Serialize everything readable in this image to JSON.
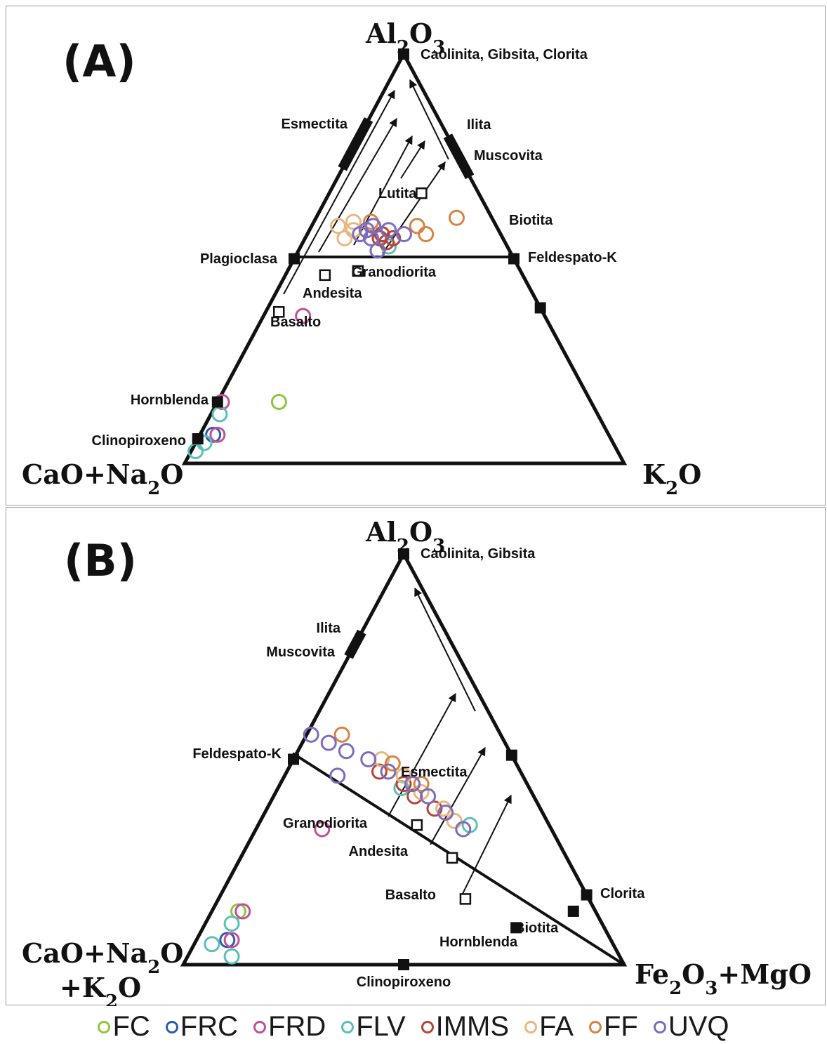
{
  "chart_data": [
    {
      "type": "scatter",
      "panel": "(A)",
      "diagram": "ternary",
      "vertices": {
        "top": {
          "main": "Al",
          "sub1": "2",
          "mid": "O",
          "sub2": "3"
        },
        "left": {
          "main": "CaO+Na",
          "sub1": "2",
          "mid": "O"
        },
        "right": {
          "main": "K",
          "sub1": "2",
          "mid": "O"
        }
      },
      "minerals": [
        {
          "label": "Caolinita, Gibsita, Clorita",
          "a": 100,
          "c": 0,
          "k": 0
        },
        {
          "label": "Biotita",
          "a": 38,
          "c": 0,
          "k": 62
        },
        {
          "label": "Feldespato-K",
          "a": 50,
          "c": 0,
          "k": 50
        },
        {
          "label": "Plagioclasa",
          "a": 50,
          "c": 50,
          "k": 0
        },
        {
          "label": "Hornblenda",
          "a": 15,
          "c": 85,
          "k": 0
        },
        {
          "label": "Clinopiroxeno",
          "a": 6,
          "c": 94,
          "k": 0
        }
      ],
      "field_bars": [
        {
          "label": "Esmectita",
          "a_from": 72,
          "a_to": 84
        },
        {
          "label": "Ilita",
          "a_from": 70,
          "a_to": 80
        },
        {
          "label": "Muscovita",
          "a_from": 70,
          "a_to": 80
        }
      ],
      "rocks": [
        {
          "label": "Lutita",
          "a": 66,
          "c": 13,
          "k": 21
        },
        {
          "label": "Granodiorita",
          "a": 47,
          "c": 37,
          "k": 16
        },
        {
          "label": "Andesita",
          "a": 46,
          "c": 45,
          "k": 9
        },
        {
          "label": "Basalto",
          "a": 37,
          "c": 60,
          "k": 3
        }
      ],
      "series": [
        {
          "name": "FC",
          "points": [
            {
              "a": 15,
              "c": 71,
              "k": 14
            }
          ]
        },
        {
          "name": "FRC",
          "points": [
            {
              "a": 7,
              "c": 90,
              "k": 3
            }
          ]
        },
        {
          "name": "FRD",
          "points": [
            {
              "a": 15,
              "c": 84,
              "k": 1
            },
            {
              "a": 36,
              "c": 55,
              "k": 9
            },
            {
              "a": 7,
              "c": 89,
              "k": 4
            }
          ]
        },
        {
          "name": "FLV",
          "points": [
            {
              "a": 12,
              "c": 86,
              "k": 2
            },
            {
              "a": 5,
              "c": 93,
              "k": 2
            },
            {
              "a": 3,
              "c": 96,
              "k": 1
            },
            {
              "a": 53,
              "c": 27,
              "k": 20
            }
          ]
        },
        {
          "name": "IMMS",
          "points": [
            {
              "a": 55,
              "c": 28,
              "k": 17
            },
            {
              "a": 56,
              "c": 27,
              "k": 17
            },
            {
              "a": 54,
              "c": 27,
              "k": 19
            },
            {
              "a": 55,
              "c": 25,
              "k": 20
            }
          ]
        },
        {
          "name": "FA",
          "points": [
            {
              "a": 58,
              "c": 36,
              "k": 6
            },
            {
              "a": 59,
              "c": 32,
              "k": 9
            },
            {
              "a": 57,
              "c": 33,
              "k": 10
            },
            {
              "a": 55,
              "c": 36,
              "k": 9
            }
          ]
        },
        {
          "name": "FF",
          "points": [
            {
              "a": 58,
              "c": 18,
              "k": 24
            },
            {
              "a": 56,
              "c": 17,
              "k": 27
            },
            {
              "a": 59,
              "c": 28,
              "k": 13
            },
            {
              "a": 60,
              "c": 8,
              "k": 32
            }
          ]
        },
        {
          "name": "UVQ",
          "points": [
            {
              "a": 56,
              "c": 32,
              "k": 12
            },
            {
              "a": 57,
              "c": 30,
              "k": 13
            },
            {
              "a": 55,
              "c": 30,
              "k": 15
            },
            {
              "a": 58,
              "c": 28,
              "k": 14
            },
            {
              "a": 57,
              "c": 25,
              "k": 18
            },
            {
              "a": 56,
              "c": 22,
              "k": 22
            },
            {
              "a": 52,
              "c": 30,
              "k": 18
            }
          ]
        }
      ]
    },
    {
      "type": "scatter",
      "panel": "(B)",
      "diagram": "ternary",
      "vertices": {
        "top": {
          "main": "Al",
          "sub1": "2",
          "mid": "O",
          "sub2": "3"
        },
        "left": {
          "main": "CaO+Na",
          "sub1": "2",
          "mid": "O",
          "line2": "+K",
          "sub3": "2",
          "end": "O"
        },
        "right": {
          "main": "Fe",
          "sub1": "2",
          "mid": "O",
          "sub2": "3",
          "end": "+MgO"
        }
      },
      "minerals": [
        {
          "label": "Caolinita, Gibsita",
          "a": 100,
          "c": 0,
          "f": 0
        },
        {
          "label": "Feldespato-K",
          "a": 50,
          "c": 50,
          "f": 0
        },
        {
          "label": "Esmectita",
          "a": 51,
          "c": 0,
          "f": 49
        },
        {
          "label": "Clorita",
          "a": 17,
          "c": 0,
          "f": 83
        },
        {
          "label": "Biotita",
          "a": 13,
          "c": 5,
          "f": 82
        },
        {
          "label": "Hornblenda",
          "a": 9,
          "c": 20,
          "f": 71
        },
        {
          "label": "Clinopiroxeno",
          "a": 0,
          "c": 50,
          "f": 50
        }
      ],
      "field_bars": [
        {
          "label": "Ilita",
          "a_from": 75,
          "a_to": 81
        },
        {
          "label": "Muscovita",
          "a_from": 75,
          "a_to": 81
        }
      ],
      "rocks": [
        {
          "label": "Granodiorita",
          "a": 34,
          "c": 30,
          "f": 36
        },
        {
          "label": "Andesita",
          "a": 26,
          "c": 26,
          "f": 48
        },
        {
          "label": "Basalto",
          "a": 16,
          "c": 28,
          "f": 56
        }
      ],
      "series": [
        {
          "name": "FC",
          "points": [
            {
              "a": 13,
              "c": 81,
              "f": 6
            }
          ]
        },
        {
          "name": "FRC",
          "points": [
            {
              "a": 6,
              "c": 87,
              "f": 7
            }
          ]
        },
        {
          "name": "FRD",
          "points": [
            {
              "a": 13,
              "c": 80,
              "f": 7
            },
            {
              "a": 6,
              "c": 86,
              "f": 8
            },
            {
              "a": 33,
              "c": 52,
              "f": 15
            }
          ]
        },
        {
          "name": "FLV",
          "points": [
            {
              "a": 5,
              "c": 91,
              "f": 4
            },
            {
              "a": 10,
              "c": 84,
              "f": 6
            },
            {
              "a": 2,
              "c": 88,
              "f": 10
            },
            {
              "a": 43,
              "c": 29,
              "f": 28
            },
            {
              "a": 34,
              "c": 18,
              "f": 48
            }
          ]
        },
        {
          "name": "IMMS",
          "points": [
            {
              "a": 47,
              "c": 32,
              "f": 21
            },
            {
              "a": 44,
              "c": 28,
              "f": 28
            },
            {
              "a": 41,
              "c": 27,
              "f": 32
            },
            {
              "a": 38,
              "c": 24,
              "f": 38
            }
          ]
        },
        {
          "name": "FA",
          "points": [
            {
              "a": 50,
              "c": 30,
              "f": 20
            },
            {
              "a": 46,
              "c": 27,
              "f": 27
            },
            {
              "a": 42,
              "c": 25,
              "f": 33
            },
            {
              "a": 38,
              "c": 22,
              "f": 40
            },
            {
              "a": 35,
              "c": 21,
              "f": 44
            }
          ]
        },
        {
          "name": "FF",
          "points": [
            {
              "a": 56,
              "c": 36,
              "f": 8
            },
            {
              "a": 49,
              "c": 28,
              "f": 23
            },
            {
              "a": 44,
              "c": 24,
              "f": 32
            }
          ]
        },
        {
          "name": "UVQ",
          "points": [
            {
              "a": 56,
              "c": 43,
              "f": 1
            },
            {
              "a": 54,
              "c": 40,
              "f": 6
            },
            {
              "a": 52,
              "c": 37,
              "f": 11
            },
            {
              "a": 50,
              "c": 33,
              "f": 17
            },
            {
              "a": 47,
              "c": 30,
              "f": 23
            },
            {
              "a": 44,
              "c": 26,
              "f": 30
            },
            {
              "a": 41,
              "c": 24,
              "f": 35
            },
            {
              "a": 37,
              "c": 22,
              "f": 41
            },
            {
              "a": 33,
              "c": 20,
              "f": 47
            },
            {
              "a": 46,
              "c": 42,
              "f": 12
            }
          ]
        }
      ]
    }
  ],
  "legend": [
    {
      "name": "FC",
      "color": "#8dc63f"
    },
    {
      "name": "FRC",
      "color": "#2a5caa"
    },
    {
      "name": "FRD",
      "color": "#c0509b"
    },
    {
      "name": "FLV",
      "color": "#5bc0b3"
    },
    {
      "name": "IMMS",
      "color": "#b5453a"
    },
    {
      "name": "FA",
      "color": "#e8b77f"
    },
    {
      "name": "FF",
      "color": "#d48443"
    },
    {
      "name": "UVQ",
      "color": "#7d6bbf"
    }
  ]
}
